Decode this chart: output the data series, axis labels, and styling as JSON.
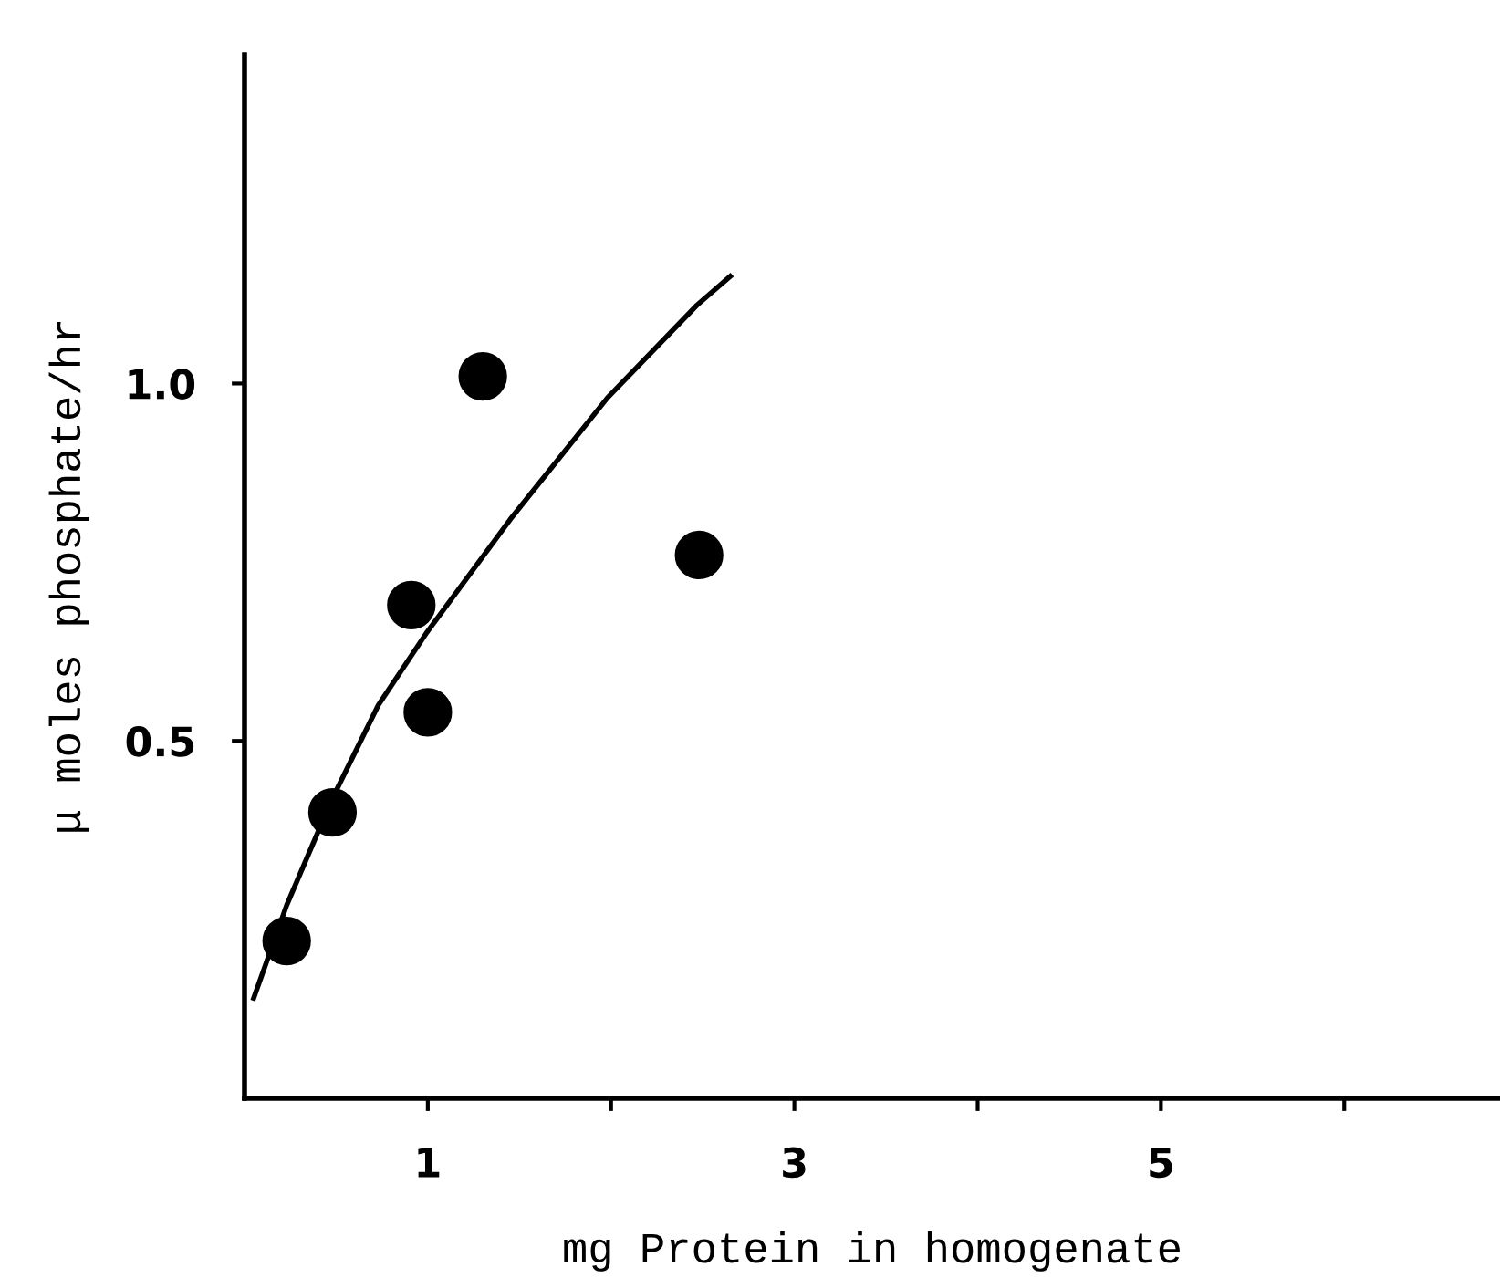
{
  "chart_data": {
    "type": "scatter",
    "xlabel": "mg Protein in homogenate",
    "ylabel": "μ moles phosphate/hr",
    "xlim": [
      0,
      6.85
    ],
    "ylim": [
      0,
      1.46
    ],
    "xticks": [
      {
        "value": 1,
        "label": "1"
      },
      {
        "value": 2,
        "label": null
      },
      {
        "value": 3,
        "label": "3"
      },
      {
        "value": 4,
        "label": null
      },
      {
        "value": 5,
        "label": "5"
      },
      {
        "value": 6,
        "label": null
      }
    ],
    "yticks": [
      0.5,
      {
        "value": 1.0,
        "label": "1.0"
      }
    ],
    "grid": false,
    "legend": false,
    "marker": "circle",
    "series": [
      {
        "color": "#000000",
        "x": [
          0.23,
          0.48,
          0.91,
          1.0,
          1.3,
          2.48
        ],
        "values": [
          0.22,
          0.4,
          0.69,
          0.54,
          1.01,
          0.76
        ]
      },
      {
        "type": "line",
        "color": "#000000",
        "marker": "none",
        "line_style": "solid",
        "x": [
          0.05,
          0.23,
          0.48,
          0.73,
          0.99,
          1.45,
          1.98,
          2.47,
          2.65
        ],
        "values": [
          0.14,
          0.27,
          0.42,
          0.55,
          0.65,
          0.81,
          0.98,
          1.11,
          1.15
        ]
      }
    ]
  }
}
